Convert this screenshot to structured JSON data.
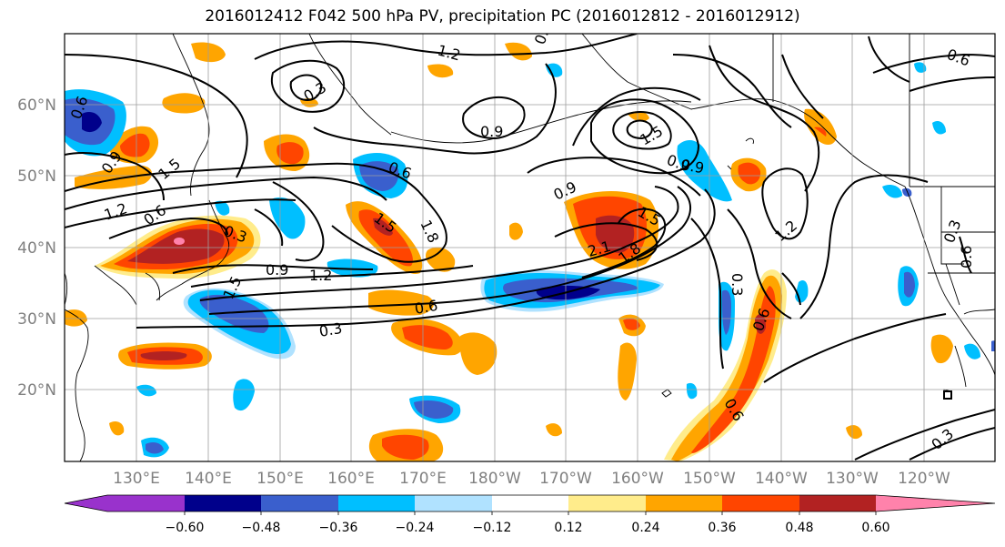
{
  "title": "2016012412 F042 500 hPa PV, precipitation PC (2016012812 - 2016012912)",
  "map": {
    "lat_labels": [
      "60°N",
      "50°N",
      "40°N",
      "30°N",
      "20°N"
    ],
    "lon_labels": [
      "130°E",
      "140°E",
      "150°E",
      "160°E",
      "170°E",
      "180°W",
      "170°W",
      "160°W",
      "150°W",
      "140°W",
      "130°W",
      "120°W"
    ],
    "contour_labels": [
      "1.2",
      "0.6",
      "0.3",
      "0.9",
      "1.5",
      "0.9",
      "0.6",
      "1.2",
      "0.6",
      "0.3",
      "0.9",
      "1.2",
      "1.5",
      "0.6",
      "1.8",
      "1.5",
      "0.9",
      "0.9",
      "1.5",
      "1.8",
      "2.1",
      "1.5",
      "0.6",
      "0.3",
      "0.3",
      "0.9",
      "1.2",
      "0.3",
      "0.6",
      "0.6",
      "0.3",
      "0.6",
      "0.6"
    ]
  },
  "colorbar": {
    "tick_labels": [
      "−0.60",
      "−0.48",
      "−0.36",
      "−0.24",
      "−0.12",
      "0.12",
      "0.24",
      "0.36",
      "0.48",
      "0.60"
    ],
    "colors": [
      "#9932cc",
      "#00008b",
      "#3a5fcd",
      "#00bfff",
      "#b0e2ff",
      "#ffffff",
      "#ffec8b",
      "#ffa500",
      "#ff4500",
      "#b22222",
      "#ff82ab"
    ]
  },
  "palette": {
    "pos_light": "#ffec8b",
    "pos_orange": "#ffa500",
    "pos_red": "#ff4500",
    "pos_dark": "#b22222",
    "pos_pink": "#ff82ab",
    "neg_pale": "#b0e2ff",
    "neg_sky": "#00bfff",
    "neg_blue": "#3a5fcd",
    "neg_navy": "#00008b"
  }
}
